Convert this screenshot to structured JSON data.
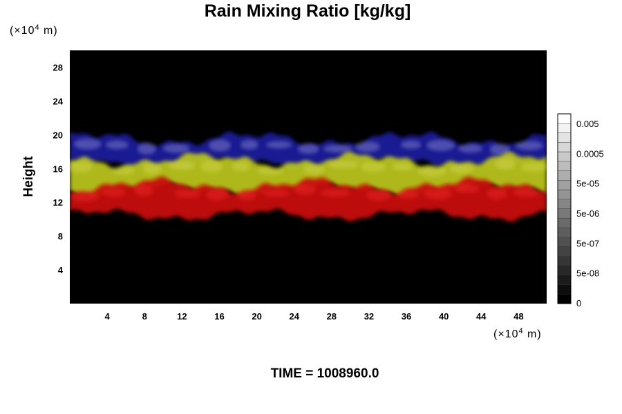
{
  "chart_data": {
    "type": "heatmap",
    "title": "Rain Mixing Ratio [kg/kg]",
    "ylabel": "Height",
    "xlabel": "",
    "y_unit_prefix": "(×10",
    "y_unit_exp": "4",
    "y_unit_suffix": " m)",
    "x_unit_prefix": "(×10",
    "x_unit_exp": "4",
    "x_unit_suffix": " m)",
    "xlim": [
      0,
      51
    ],
    "ylim": [
      0,
      30
    ],
    "x_ticks": [
      4,
      8,
      12,
      16,
      20,
      24,
      28,
      32,
      36,
      40,
      44,
      48
    ],
    "y_ticks": [
      4,
      8,
      12,
      16,
      20,
      24,
      28
    ],
    "background_color": "#000000",
    "layers": [
      {
        "color": "#1a1f9a",
        "highlight": "#b0b0e8",
        "bottom_height": 16.5,
        "top_height": 19.5
      },
      {
        "color": "#b8c21a",
        "highlight": "#e0e060",
        "bottom_height": 13.5,
        "top_height": 17.0
      },
      {
        "color": "#c81010",
        "highlight": "#ff3030",
        "bottom_height": 10.5,
        "top_height": 14.0
      }
    ],
    "colorbar": {
      "labels": [
        "0.005",
        "0.0005",
        "5e-05",
        "5e-06",
        "5e-07",
        "5e-08",
        "0"
      ],
      "levels": 20,
      "colors": [
        "#000000",
        "#ffffff"
      ]
    },
    "footer_label": "TIME = 1008960.0"
  }
}
